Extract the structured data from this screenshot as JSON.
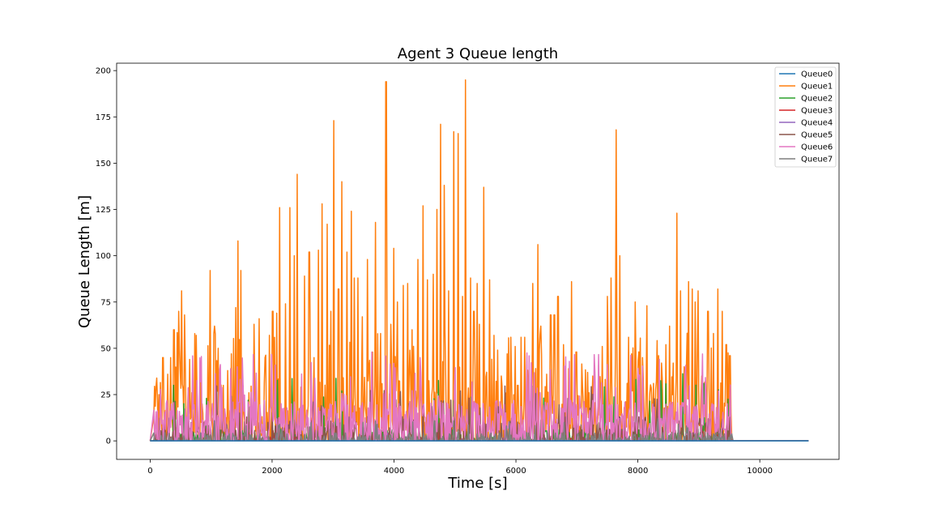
{
  "chart_data": {
    "type": "line",
    "title": "Agent 3 Queue length",
    "xlabel": "Time [s]",
    "ylabel": "Queue Length [m]",
    "xlim": [
      -550,
      11300
    ],
    "ylim": [
      -10,
      204
    ],
    "xticks": [
      0,
      2000,
      4000,
      6000,
      8000,
      10000
    ],
    "xtick_labels": [
      "0",
      "2000",
      "4000",
      "6000",
      "8000",
      "10000"
    ],
    "yticks": [
      0,
      25,
      50,
      75,
      100,
      125,
      150,
      175,
      200
    ],
    "ytick_labels": [
      "0",
      "25",
      "50",
      "75",
      "100",
      "125",
      "150",
      "175",
      "200"
    ],
    "grid": false,
    "legend_position": "top-right",
    "active_range": [
      60,
      9550
    ],
    "x_end": 10800,
    "series": [
      {
        "name": "Queue0",
        "color": "#1f77b4",
        "max": 0,
        "mean": 0,
        "density": 0
      },
      {
        "name": "Queue1",
        "color": "#ff7f0e",
        "max": 195,
        "mean": 30,
        "density": 1.0,
        "peaks": [
          [
            140,
            25
          ],
          [
            210,
            45
          ],
          [
            290,
            36
          ],
          [
            340,
            45
          ],
          [
            390,
            60
          ],
          [
            470,
            70
          ],
          [
            520,
            81
          ],
          [
            560,
            68
          ],
          [
            650,
            44
          ],
          [
            760,
            57
          ],
          [
            850,
            20
          ],
          [
            980,
            92
          ],
          [
            1060,
            62
          ],
          [
            1120,
            50
          ],
          [
            1200,
            30
          ],
          [
            1270,
            38
          ],
          [
            1330,
            47
          ],
          [
            1400,
            72
          ],
          [
            1440,
            108
          ],
          [
            1490,
            92
          ],
          [
            1620,
            26
          ],
          [
            1700,
            63
          ],
          [
            1790,
            66
          ],
          [
            1880,
            45
          ],
          [
            1960,
            57
          ],
          [
            2010,
            70
          ],
          [
            2080,
            69
          ],
          [
            2120,
            126
          ],
          [
            2220,
            74
          ],
          [
            2290,
            126
          ],
          [
            2360,
            100
          ],
          [
            2410,
            144
          ],
          [
            2530,
            89
          ],
          [
            2610,
            102
          ],
          [
            2690,
            45
          ],
          [
            2760,
            103
          ],
          [
            2820,
            128
          ],
          [
            2900,
            117
          ],
          [
            2960,
            70
          ],
          [
            3010,
            173
          ],
          [
            3090,
            82
          ],
          [
            3140,
            140
          ],
          [
            3230,
            102
          ],
          [
            3300,
            124
          ],
          [
            3350,
            88
          ],
          [
            3410,
            88
          ],
          [
            3480,
            67
          ],
          [
            3560,
            98
          ],
          [
            3700,
            118
          ],
          [
            3780,
            58
          ],
          [
            3870,
            194
          ],
          [
            3950,
            63
          ],
          [
            4000,
            104
          ],
          [
            4060,
            75
          ],
          [
            4150,
            84
          ],
          [
            4220,
            85
          ],
          [
            4300,
            60
          ],
          [
            4390,
            98
          ],
          [
            4480,
            127
          ],
          [
            4550,
            87
          ],
          [
            4640,
            90
          ],
          [
            4700,
            125
          ],
          [
            4760,
            171
          ],
          [
            4820,
            138
          ],
          [
            4900,
            81
          ],
          [
            4980,
            167
          ],
          [
            5050,
            166
          ],
          [
            5120,
            78
          ],
          [
            5170,
            195
          ],
          [
            5260,
            88
          ],
          [
            5310,
            70
          ],
          [
            5360,
            85
          ],
          [
            5400,
            63
          ],
          [
            5470,
            137
          ],
          [
            5570,
            87
          ],
          [
            5640,
            57
          ],
          [
            5700,
            49
          ],
          [
            5760,
            35
          ],
          [
            5860,
            47
          ],
          [
            5920,
            56
          ],
          [
            5990,
            51
          ],
          [
            6030,
            30
          ],
          [
            6080,
            56
          ],
          [
            6140,
            56
          ],
          [
            6200,
            27
          ],
          [
            6280,
            85
          ],
          [
            6360,
            106
          ],
          [
            6410,
            62
          ],
          [
            6500,
            36
          ],
          [
            6570,
            68
          ],
          [
            6630,
            68
          ],
          [
            6690,
            78
          ],
          [
            6780,
            52
          ],
          [
            6860,
            39
          ],
          [
            6910,
            86
          ],
          [
            6990,
            48
          ],
          [
            7100,
            20
          ],
          [
            7180,
            37
          ],
          [
            7260,
            35
          ],
          [
            7360,
            41
          ],
          [
            7420,
            51
          ],
          [
            7500,
            78
          ],
          [
            7560,
            88
          ],
          [
            7640,
            168
          ],
          [
            7700,
            100
          ],
          [
            7780,
            18
          ],
          [
            7850,
            56
          ],
          [
            7900,
            47
          ],
          [
            7960,
            75
          ],
          [
            8030,
            36
          ],
          [
            8080,
            45
          ],
          [
            8150,
            73
          ],
          [
            8200,
            26
          ],
          [
            8260,
            31
          ],
          [
            8340,
            46
          ],
          [
            8390,
            42
          ],
          [
            8460,
            52
          ],
          [
            8520,
            62
          ],
          [
            8580,
            42
          ],
          [
            8640,
            123
          ],
          [
            8700,
            81
          ],
          [
            8760,
            40
          ],
          [
            8830,
            86
          ],
          [
            8890,
            82
          ],
          [
            8940,
            75
          ],
          [
            8990,
            81
          ],
          [
            9050,
            35
          ],
          [
            9150,
            70
          ],
          [
            9240,
            58
          ],
          [
            9310,
            82
          ],
          [
            9380,
            70
          ],
          [
            9450,
            52
          ],
          [
            9510,
            46
          ]
        ]
      },
      {
        "name": "Queue2",
        "color": "#2ca02c",
        "max": 37,
        "mean": 3,
        "density": 0.35
      },
      {
        "name": "Queue3",
        "color": "#d62728",
        "max": 6,
        "mean": 1,
        "density": 0.15
      },
      {
        "name": "Queue4",
        "color": "#9467bd",
        "max": 6,
        "mean": 1,
        "density": 0.15
      },
      {
        "name": "Queue5",
        "color": "#8c564b",
        "max": 30,
        "mean": 6,
        "density": 0.5
      },
      {
        "name": "Queue6",
        "color": "#e377c2",
        "max": 48,
        "mean": 10,
        "density": 0.8
      },
      {
        "name": "Queue7",
        "color": "#7f7f7f",
        "max": 12,
        "mean": 2,
        "density": 0.35
      }
    ]
  }
}
